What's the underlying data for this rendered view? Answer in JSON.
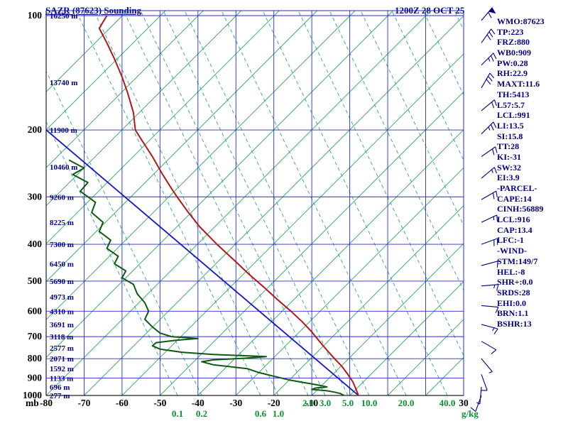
{
  "header": {
    "title": "SAZR (87623) Sounding",
    "datetime": "1200Z 28 OCT 25"
  },
  "stats": [
    "WMO:87623",
    "TP:223",
    "FRZ:880",
    "WB0:909",
    "PW:0.28",
    "RH:22.9",
    "MAXT:11.6",
    "TH:5413",
    "L57:5.7",
    "LCL:991",
    "LI:13.5",
    "SI:15.8",
    "TT:28",
    "KI:-31",
    "SW:32",
    "EI:3.9",
    "-PARCEL-",
    "CAPE:14",
    "CINH:56889",
    "LCL:916",
    "CAP:13.4",
    "LFC:-1",
    "-WIND-",
    "STM:149/7",
    "HEL:-8",
    "SHR+:0.0",
    "SRDS:28",
    "EHI:0.0",
    "BRN:1.1",
    "BSHR:13"
  ],
  "chart_data": {
    "type": "skewt-sounding",
    "station": "SAZR (87623)",
    "valid": "1200Z 28 OCT 25",
    "pressure_axis": {
      "unit": "mb",
      "ticks": [
        100,
        200,
        300,
        400,
        500,
        600,
        700,
        800,
        900,
        1000
      ]
    },
    "temp_axis": {
      "unit": "C",
      "min": -80,
      "max": 40,
      "step": 10,
      "visible_labels": [
        "-80",
        "-70",
        "-60",
        "-50",
        "-40",
        "-30",
        "-20",
        "-10",
        "30"
      ]
    },
    "height_labels": [
      {
        "p": 100,
        "label": "16250 m"
      },
      {
        "p": 150,
        "label": "13740 m"
      },
      {
        "p": 200,
        "label": "11900 m"
      },
      {
        "p": 250,
        "label": "10460 m"
      },
      {
        "p": 300,
        "label": "9260 m"
      },
      {
        "p": 350,
        "label": "8225 m"
      },
      {
        "p": 400,
        "label": "7300 m"
      },
      {
        "p": 450,
        "label": "6450 m"
      },
      {
        "p": 500,
        "label": "5690 m"
      },
      {
        "p": 550,
        "label": "4973 m"
      },
      {
        "p": 600,
        "label": "4310 m"
      },
      {
        "p": 650,
        "label": "3691 m"
      },
      {
        "p": 700,
        "label": "3118 m"
      },
      {
        "p": 750,
        "label": "2577 m"
      },
      {
        "p": 800,
        "label": "2071 m"
      },
      {
        "p": 850,
        "label": "1592 m"
      },
      {
        "p": 900,
        "label": "1133 m"
      },
      {
        "p": 950,
        "label": "696 m"
      },
      {
        "p": 1000,
        "label": "277 m"
      }
    ],
    "mixing_ratio": {
      "unit": "g/kg",
      "labels": [
        "0.1",
        "0.2",
        "0.6",
        "1.0",
        "2.0",
        "3.0",
        "5.0",
        "10.0",
        "20.0",
        "40.0"
      ],
      "rows": [
        2,
        2,
        2,
        2,
        1,
        1,
        1,
        1,
        1,
        1
      ]
    },
    "series": {
      "temperature": {
        "name": "temperature",
        "color": "#b01818",
        "points": [
          [
            100,
            -64
          ],
          [
            108,
            -66
          ],
          [
            118,
            -64
          ],
          [
            130,
            -62
          ],
          [
            145,
            -60
          ],
          [
            160,
            -58.5
          ],
          [
            180,
            -57
          ],
          [
            200,
            -56.5
          ],
          [
            215,
            -54.5
          ],
          [
            235,
            -52
          ],
          [
            260,
            -49.5
          ],
          [
            285,
            -47
          ],
          [
            300,
            -45.5
          ],
          [
            330,
            -42.5
          ],
          [
            360,
            -39.5
          ],
          [
            400,
            -35
          ],
          [
            440,
            -30.5
          ],
          [
            480,
            -26.5
          ],
          [
            520,
            -22.5
          ],
          [
            560,
            -19
          ],
          [
            600,
            -15.5
          ],
          [
            640,
            -12.5
          ],
          [
            680,
            -10
          ],
          [
            700,
            -9
          ],
          [
            730,
            -7.5
          ],
          [
            760,
            -6
          ],
          [
            800,
            -4
          ],
          [
            840,
            -2
          ],
          [
            880,
            -0.5
          ],
          [
            920,
            0.8
          ],
          [
            960,
            1.6
          ],
          [
            1000,
            2.3
          ]
        ]
      },
      "dewpoint": {
        "name": "dewpoint",
        "color": "#0e5a10",
        "points": [
          [
            240,
            -74
          ],
          [
            252,
            -70
          ],
          [
            262,
            -73
          ],
          [
            275,
            -69
          ],
          [
            290,
            -71
          ],
          [
            310,
            -67
          ],
          [
            330,
            -68
          ],
          [
            350,
            -65
          ],
          [
            370,
            -66
          ],
          [
            390,
            -63
          ],
          [
            410,
            -64
          ],
          [
            430,
            -61
          ],
          [
            450,
            -62
          ],
          [
            470,
            -59
          ],
          [
            490,
            -60
          ],
          [
            510,
            -57
          ],
          [
            540,
            -56
          ],
          [
            570,
            -54
          ],
          [
            600,
            -53
          ],
          [
            630,
            -54
          ],
          [
            660,
            -52
          ],
          [
            685,
            -50
          ],
          [
            700,
            -47
          ],
          [
            708,
            -40
          ],
          [
            716,
            -46
          ],
          [
            726,
            -51
          ],
          [
            740,
            -52
          ],
          [
            755,
            -50
          ],
          [
            770,
            -44
          ],
          [
            780,
            -36
          ],
          [
            790,
            -22
          ],
          [
            798,
            -28
          ],
          [
            806,
            -36
          ],
          [
            815,
            -39
          ],
          [
            830,
            -36
          ],
          [
            850,
            -27
          ],
          [
            870,
            -24
          ],
          [
            890,
            -20
          ],
          [
            910,
            -16
          ],
          [
            925,
            -12
          ],
          [
            940,
            -8
          ],
          [
            950,
            -6
          ],
          [
            956,
            -9
          ],
          [
            964,
            -10
          ],
          [
            972,
            -6
          ],
          [
            980,
            -4
          ],
          [
            988,
            -2.5
          ],
          [
            1000,
            -1.5
          ]
        ]
      },
      "parcel": {
        "name": "parcel-trace",
        "color": "#1414c8",
        "points": [
          [
            1000,
            2.3
          ],
          [
            200,
            -80
          ]
        ]
      }
    },
    "wind_barbs": {
      "color": "#000080",
      "barbs": [
        {
          "p": 103,
          "dir": 40,
          "flag": 1,
          "full": 1
        },
        {
          "p": 118,
          "dir": 35,
          "full": 3
        },
        {
          "p": 135,
          "dir": 45,
          "full": 2,
          "half": 1
        },
        {
          "p": 155,
          "dir": 30,
          "full": 3
        },
        {
          "p": 178,
          "dir": 50,
          "full": 2
        },
        {
          "p": 205,
          "dir": 45,
          "full": 2,
          "half": 1
        },
        {
          "p": 235,
          "dir": 55,
          "full": 2
        },
        {
          "p": 268,
          "dir": 50,
          "full": 1,
          "half": 1
        },
        {
          "p": 305,
          "dir": 60,
          "full": 2
        },
        {
          "p": 350,
          "dir": 65,
          "full": 1,
          "half": 1
        },
        {
          "p": 400,
          "dir": 70,
          "full": 2
        },
        {
          "p": 455,
          "dir": 75,
          "full": 1
        },
        {
          "p": 515,
          "dir": 85,
          "full": 1,
          "half": 1
        },
        {
          "p": 580,
          "dir": 95,
          "full": 1
        },
        {
          "p": 650,
          "dir": 105,
          "full": 1,
          "half": 1
        },
        {
          "p": 720,
          "dir": 120,
          "full": 1
        },
        {
          "p": 800,
          "dir": 140,
          "half": 1
        },
        {
          "p": 880,
          "dir": 160,
          "full": 1
        },
        {
          "p": 950,
          "dir": 185,
          "half": 1
        },
        {
          "p": 1000,
          "dir": 200,
          "full": 1
        }
      ]
    }
  }
}
